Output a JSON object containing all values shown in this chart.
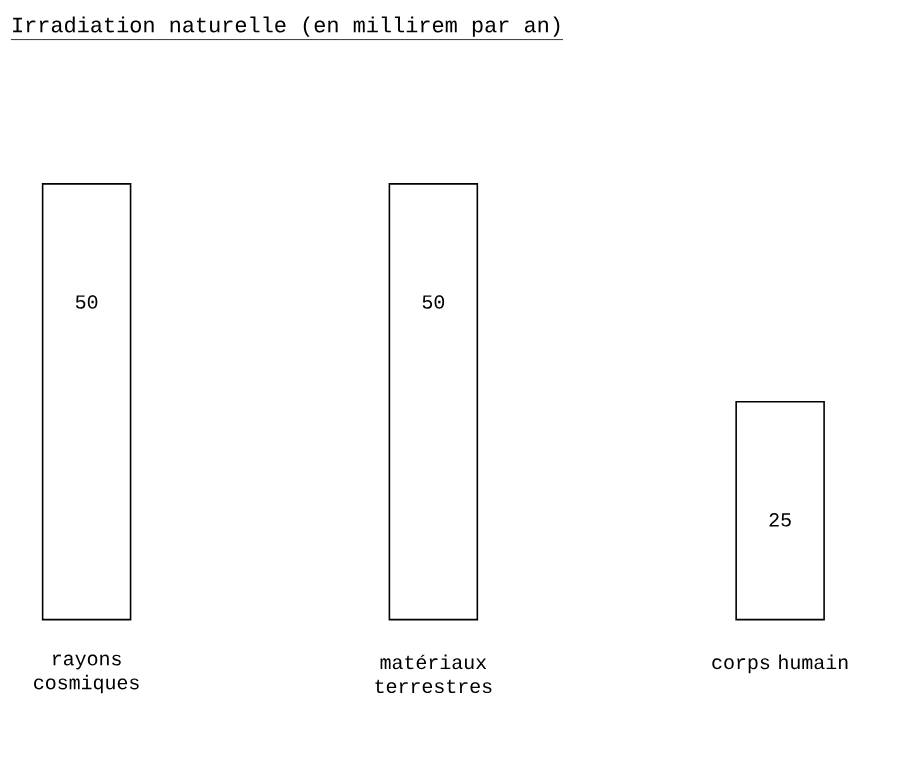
{
  "chart_data": {
    "type": "bar",
    "title": "Irradiation naturelle (en millirem par an)",
    "categories": [
      "rayons cosmiques",
      "matériaux terrestres",
      "corps humain"
    ],
    "values": [
      50,
      50,
      25
    ],
    "color": "#ffffff",
    "data_labels": true
  }
}
